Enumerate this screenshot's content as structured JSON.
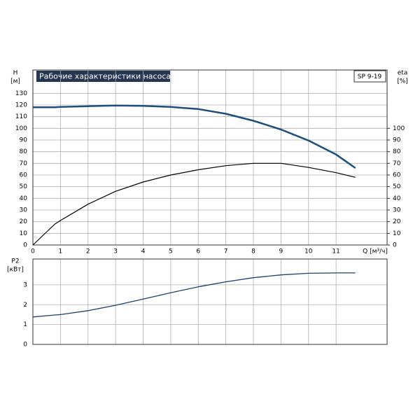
{
  "chart_data": [
    {
      "type": "line",
      "title": "Рабочие характеристики насоса",
      "subtitle": "SP 9-19",
      "y_label": "H",
      "y_unit": "[м]",
      "y2_label": "eta",
      "y2_unit": "[%]",
      "x_label": "Q [м³/ч]",
      "x": [
        0,
        0.8,
        1,
        2,
        3,
        4,
        5,
        6,
        7,
        8,
        9,
        10,
        11,
        11.7
      ],
      "series": [
        {
          "color": "#1f4e79",
          "width": 2.5,
          "values": [
            118,
            118,
            118.3,
            119,
            119.5,
            119.3,
            118.3,
            116.5,
            112.5,
            106.5,
            99,
            89.5,
            77.5,
            66
          ]
        },
        {
          "color": "#000000",
          "width": 1.2,
          "axis": "y2",
          "values": [
            0,
            18,
            21,
            35,
            46,
            54,
            60,
            64.5,
            68,
            70,
            70,
            66.5,
            62,
            58
          ]
        }
      ],
      "xlim": [
        0,
        12.85
      ],
      "xticks": [
        0,
        1,
        2,
        3,
        4,
        5,
        6,
        7,
        8,
        9,
        10,
        11
      ],
      "ylim": [
        0,
        150
      ],
      "yticks": [
        0,
        10,
        20,
        30,
        40,
        50,
        60,
        70,
        80,
        90,
        100,
        110,
        120,
        130
      ],
      "y2lim": [
        0,
        150
      ],
      "y2ticks": [
        0,
        10,
        20,
        30,
        40,
        50,
        60,
        70,
        80,
        90,
        100
      ],
      "grid": true
    },
    {
      "type": "line",
      "y_label": "P2",
      "y_unit": "[кВт]",
      "x": [
        0,
        0.8,
        1,
        2,
        3,
        4,
        5,
        6,
        7,
        8,
        9,
        10,
        11,
        11.7
      ],
      "series": [
        {
          "color": "#1f3f6e",
          "width": 1.3,
          "values": [
            1.38,
            1.48,
            1.5,
            1.7,
            1.97,
            2.28,
            2.6,
            2.9,
            3.15,
            3.36,
            3.5,
            3.58,
            3.6,
            3.6
          ]
        }
      ],
      "xlim": [
        0,
        12.85
      ],
      "ylim": [
        0,
        4.3
      ],
      "yticks": [
        0,
        1,
        2,
        3
      ],
      "grid": true
    }
  ]
}
